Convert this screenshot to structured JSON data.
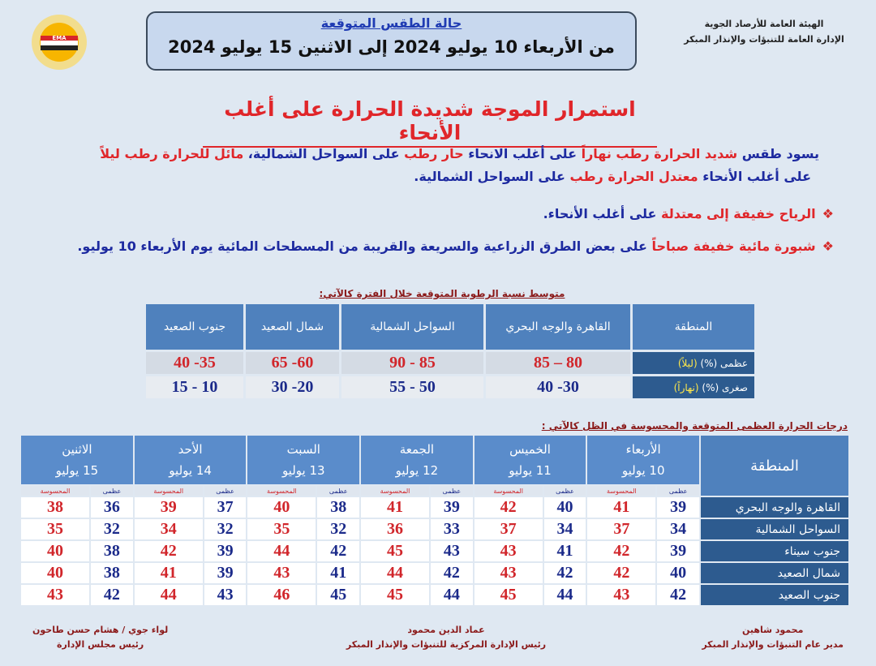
{
  "org": {
    "line1": "الهيئة العامة للأرصاد الجوية",
    "line2": "الإدارة العامة للتنبؤات والإنذار المبكر",
    "logo_text": "EMA"
  },
  "header": {
    "title": "حالة الطقس المتوقعة",
    "dates": "من الأربعاء 10 يوليو 2024  إلى  الاثنين 15 يوليو 2024"
  },
  "headline": "استمرار الموجة شديدة الحرارة على أغلب الأنحاء",
  "body": {
    "p1a": "يسود طقس ",
    "p1b": "شديد الحرارة رطب نهاراً",
    "p1c": " على أغلب الانحاء ",
    "p1d": "حار رطب",
    "p1e": " على السواحل الشمالية، ",
    "p1f": "مائل للحرارة رطب ليلاً",
    "p2a": "على أغلب الأنحاء ",
    "p2b": "معتدل الحرارة رطب",
    "p2c": " على السواحل الشمالية.",
    "b1a": "الرياح خفيفة إلى معتدلة",
    "b1b": " على أغلب الأنحاء.",
    "b2a": "شبورة مائية خفيفة صباحاً",
    "b2b": " على بعض الطرق الزراعية والسريعة والقريبة من المسطحات المائية يوم الأربعاء 10 يوليو.",
    "bullet_icon": "❖"
  },
  "humidity": {
    "title": "متوسط نسبة الرطوبة المتوقعة خلال الفترة كالآتي:",
    "headers": [
      "المنطقة",
      "القاهرة والوجه البحري",
      "السواحل الشمالية",
      "شمال الصعيد",
      "جنوب الصعيد"
    ],
    "max_label": "عظمى (%)",
    "max_tag": "(ليلاً)",
    "min_label": "صغرى (%)",
    "min_tag": "(نهاراً)",
    "max": [
      "80 – 85",
      "85 - 90",
      "60- 65",
      "35- 40"
    ],
    "min": [
      "30- 40",
      "50 - 55",
      "20- 30",
      "10 - 15"
    ]
  },
  "temps": {
    "title": "درجات الحرارة العظمى المتوقعة والمحسوسة في الظل كالآتي :",
    "region_header": "المنطقة",
    "max_label": "عظمى",
    "feels_label": "المحسوسة",
    "days": [
      {
        "day": "الأربعاء",
        "date": "10 يوليو"
      },
      {
        "day": "الخميس",
        "date": "11 يوليو"
      },
      {
        "day": "الجمعة",
        "date": "12 يوليو"
      },
      {
        "day": "السبت",
        "date": "13 يوليو"
      },
      {
        "day": "الأحد",
        "date": "14 يوليو"
      },
      {
        "day": "الاثنين",
        "date": "15 يوليو"
      }
    ],
    "rows": [
      {
        "region": "القاهرة والوجه البحري",
        "values": [
          [
            39,
            41
          ],
          [
            40,
            42
          ],
          [
            39,
            41
          ],
          [
            38,
            40
          ],
          [
            37,
            39
          ],
          [
            36,
            38
          ]
        ]
      },
      {
        "region": "السواحل الشمالية",
        "values": [
          [
            34,
            37
          ],
          [
            34,
            37
          ],
          [
            33,
            36
          ],
          [
            32,
            35
          ],
          [
            32,
            34
          ],
          [
            32,
            35
          ]
        ]
      },
      {
        "region": "جنوب سيناء",
        "values": [
          [
            39,
            42
          ],
          [
            41,
            43
          ],
          [
            43,
            45
          ],
          [
            42,
            44
          ],
          [
            39,
            42
          ],
          [
            38,
            40
          ]
        ]
      },
      {
        "region": "شمال الصعيد",
        "values": [
          [
            40,
            42
          ],
          [
            42,
            43
          ],
          [
            42,
            44
          ],
          [
            41,
            43
          ],
          [
            39,
            41
          ],
          [
            38,
            40
          ]
        ]
      },
      {
        "region": "جنوب الصعيد",
        "values": [
          [
            42,
            43
          ],
          [
            44,
            45
          ],
          [
            44,
            45
          ],
          [
            45,
            46
          ],
          [
            43,
            44
          ],
          [
            42,
            43
          ]
        ]
      }
    ]
  },
  "signatures": [
    {
      "name": "محمود شاهين",
      "title": "مدير عام التنبؤات والإنذار المبكر"
    },
    {
      "name": "عماد الدين محمود",
      "title": "رئيس الإدارة المركزية للتنبؤات والإنذار المبكر"
    },
    {
      "name": "لواء جوي / هشام حسن طاحون",
      "title": "رئيس مجلس الإدارة"
    }
  ],
  "colors": {
    "accent_red": "#e0262a",
    "text_blue": "#1d2aa0",
    "table_header": "#4f81bd",
    "region_cell": "#2d5b8f"
  }
}
